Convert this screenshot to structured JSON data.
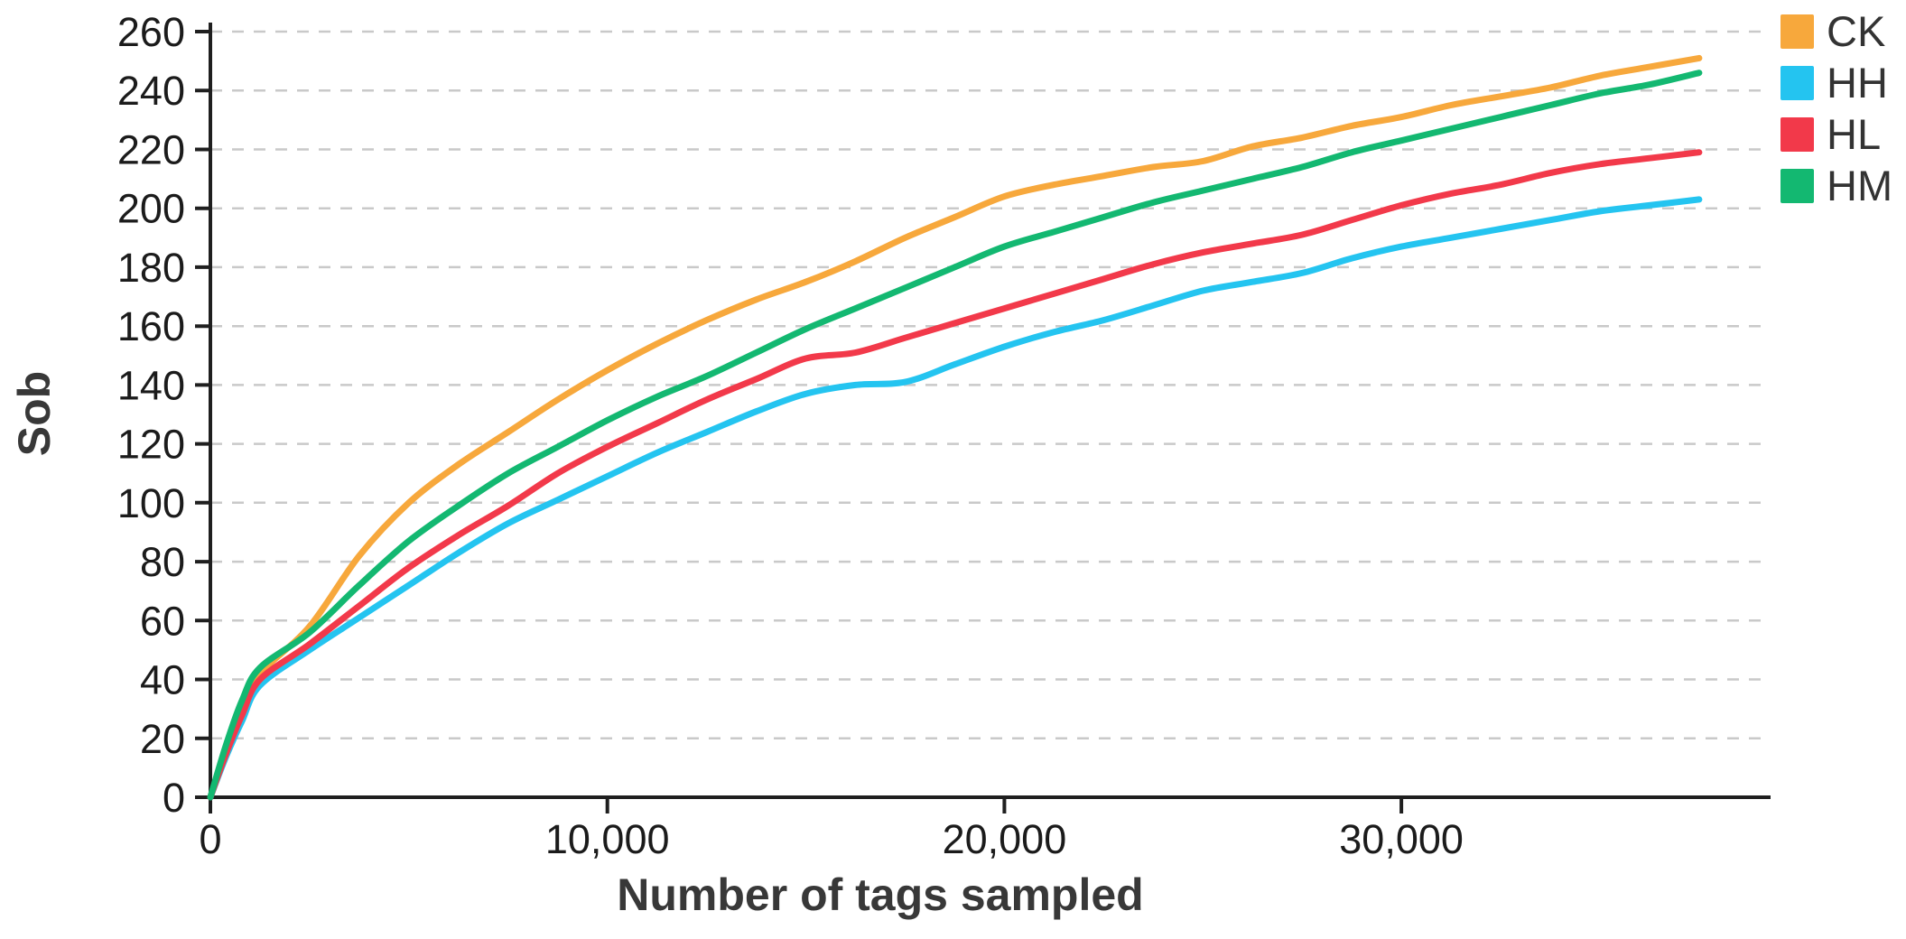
{
  "chart_data": {
    "type": "line",
    "title": "",
    "xlabel": "Number of tags sampled",
    "ylabel": "Sob",
    "xlim": [
      0,
      39300
    ],
    "ylim": [
      0,
      260
    ],
    "x_ticks": [
      0,
      10000,
      20000,
      30000
    ],
    "x_tick_labels": [
      "0",
      "10,000",
      "20,000",
      "30,000"
    ],
    "y_ticks": [
      0,
      20,
      40,
      60,
      80,
      100,
      120,
      140,
      160,
      180,
      200,
      220,
      240,
      260
    ],
    "grid": "horizontal-dashed",
    "legend_position": "top-right-outside",
    "x": [
      0,
      400,
      800,
      1250,
      2500,
      3750,
      5000,
      6250,
      7500,
      8750,
      10000,
      11250,
      12500,
      13750,
      15000,
      16250,
      17500,
      18750,
      20000,
      21250,
      22500,
      23750,
      25000,
      26250,
      27500,
      28750,
      30000,
      31250,
      32500,
      33750,
      35000,
      36250,
      37500
    ],
    "series": [
      {
        "name": "CK",
        "color": "#F7A83C",
        "values": [
          0,
          16,
          30,
          42,
          58,
          82,
          100,
          113,
          124,
          135,
          145,
          154,
          162,
          169,
          175,
          182,
          190,
          197,
          204,
          208,
          211,
          214,
          216,
          221,
          224,
          228,
          231,
          235,
          238,
          241,
          245,
          248,
          251
        ]
      },
      {
        "name": "HH",
        "color": "#24C4F0",
        "values": [
          0,
          14,
          26,
          38,
          50,
          61,
          72,
          83,
          93,
          101,
          109,
          117,
          124,
          131,
          137,
          140,
          141,
          147,
          153,
          158,
          162,
          167,
          172,
          175,
          178,
          183,
          187,
          190,
          193,
          196,
          199,
          201,
          203
        ]
      },
      {
        "name": "HL",
        "color": "#F2394A",
        "values": [
          0,
          15,
          28,
          40,
          52,
          65,
          78,
          89,
          99,
          110,
          119,
          127,
          135,
          142,
          149,
          151,
          156,
          161,
          166,
          171,
          176,
          181,
          185,
          188,
          191,
          196,
          201,
          205,
          208,
          212,
          215,
          217,
          219
        ]
      },
      {
        "name": "HM",
        "color": "#13B871",
        "values": [
          0,
          18,
          33,
          44,
          56,
          72,
          87,
          99,
          110,
          119,
          128,
          136,
          143,
          151,
          159,
          166,
          173,
          180,
          187,
          192,
          197,
          202,
          206,
          210,
          214,
          219,
          223,
          227,
          231,
          235,
          239,
          242,
          246
        ]
      }
    ],
    "colors": {
      "axis": "#1f1f1f",
      "grid": "#c9c9c9",
      "axis_title_text": "#383838",
      "tick_text": "#1b1b1b"
    }
  }
}
